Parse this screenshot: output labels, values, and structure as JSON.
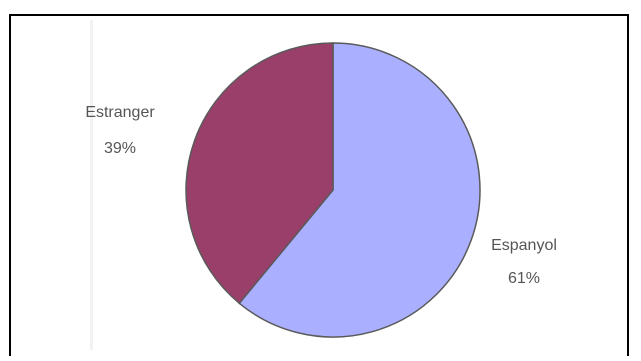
{
  "chart_data": {
    "type": "pie",
    "slices": [
      {
        "label": "Espanyol",
        "value": 61,
        "percent_label": "61%",
        "color": "#aab0ff"
      },
      {
        "label": "Estranger",
        "value": 39,
        "percent_label": "39%",
        "color": "#9a3f6a"
      }
    ],
    "start_angle_deg": 0,
    "direction": "clockwise",
    "outline_color": "#5a5a5a"
  }
}
